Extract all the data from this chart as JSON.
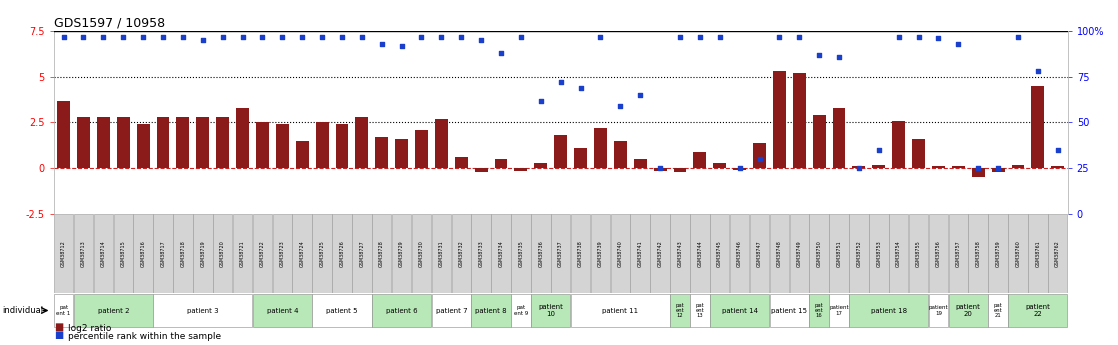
{
  "title": "GDS1597 / 10958",
  "samples": [
    "GSM38712",
    "GSM38713",
    "GSM38714",
    "GSM38715",
    "GSM38716",
    "GSM38717",
    "GSM38718",
    "GSM38719",
    "GSM38720",
    "GSM38721",
    "GSM38722",
    "GSM38723",
    "GSM38724",
    "GSM38725",
    "GSM38726",
    "GSM38727",
    "GSM38728",
    "GSM38729",
    "GSM38730",
    "GSM38731",
    "GSM38732",
    "GSM38733",
    "GSM38734",
    "GSM38735",
    "GSM38736",
    "GSM38737",
    "GSM38738",
    "GSM38739",
    "GSM38740",
    "GSM38741",
    "GSM38742",
    "GSM38743",
    "GSM38744",
    "GSM38745",
    "GSM38746",
    "GSM38747",
    "GSM38748",
    "GSM38749",
    "GSM38750",
    "GSM38751",
    "GSM38752",
    "GSM38753",
    "GSM38754",
    "GSM38755",
    "GSM38756",
    "GSM38757",
    "GSM38758",
    "GSM38759",
    "GSM38760",
    "GSM38761",
    "GSM38762"
  ],
  "log2_ratio": [
    3.7,
    2.8,
    2.8,
    2.8,
    2.4,
    2.8,
    2.8,
    2.8,
    2.8,
    3.3,
    2.5,
    2.4,
    1.5,
    2.5,
    2.4,
    2.8,
    1.7,
    1.6,
    2.1,
    2.7,
    0.6,
    -0.2,
    0.5,
    -0.15,
    0.3,
    1.8,
    1.1,
    2.2,
    1.5,
    0.5,
    -0.15,
    -0.2,
    0.9,
    0.3,
    -0.1,
    1.4,
    5.3,
    5.2,
    2.9,
    3.3,
    0.1,
    0.15,
    2.6,
    1.6,
    0.1,
    0.1,
    -0.5,
    -0.2,
    0.15,
    4.5,
    0.1
  ],
  "percentile": [
    97,
    97,
    97,
    97,
    97,
    97,
    97,
    95,
    97,
    97,
    97,
    97,
    97,
    97,
    97,
    97,
    93,
    92,
    97,
    97,
    97,
    95,
    88,
    97,
    62,
    72,
    69,
    97,
    59,
    65,
    25,
    97,
    97,
    97,
    25,
    30,
    97,
    97,
    87,
    86,
    25,
    35,
    97,
    97,
    96,
    93,
    25,
    25,
    97,
    78,
    35
  ],
  "patients": [
    {
      "label": "pat\nent 1",
      "start": 0,
      "end": 1,
      "alt": 0
    },
    {
      "label": "patient 2",
      "start": 1,
      "end": 5,
      "alt": 1
    },
    {
      "label": "patient 3",
      "start": 5,
      "end": 10,
      "alt": 0
    },
    {
      "label": "patient 4",
      "start": 10,
      "end": 13,
      "alt": 1
    },
    {
      "label": "patient 5",
      "start": 13,
      "end": 16,
      "alt": 0
    },
    {
      "label": "patient 6",
      "start": 16,
      "end": 19,
      "alt": 1
    },
    {
      "label": "patient 7",
      "start": 19,
      "end": 21,
      "alt": 0
    },
    {
      "label": "patient 8",
      "start": 21,
      "end": 23,
      "alt": 1
    },
    {
      "label": "pat\nent 9",
      "start": 23,
      "end": 24,
      "alt": 0
    },
    {
      "label": "patient\n10",
      "start": 24,
      "end": 26,
      "alt": 1
    },
    {
      "label": "patient 11",
      "start": 26,
      "end": 31,
      "alt": 0
    },
    {
      "label": "pat\nent\n12",
      "start": 31,
      "end": 32,
      "alt": 1
    },
    {
      "label": "pat\nent\n13",
      "start": 32,
      "end": 33,
      "alt": 0
    },
    {
      "label": "patient 14",
      "start": 33,
      "end": 36,
      "alt": 1
    },
    {
      "label": "patient 15",
      "start": 36,
      "end": 38,
      "alt": 0
    },
    {
      "label": "pat\nent\n16",
      "start": 38,
      "end": 39,
      "alt": 1
    },
    {
      "label": "patient\n17",
      "start": 39,
      "end": 40,
      "alt": 0
    },
    {
      "label": "patient 18",
      "start": 40,
      "end": 44,
      "alt": 1
    },
    {
      "label": "patient\n19",
      "start": 44,
      "end": 45,
      "alt": 0
    },
    {
      "label": "patient\n20",
      "start": 45,
      "end": 47,
      "alt": 1
    },
    {
      "label": "pat\nent\n21",
      "start": 47,
      "end": 48,
      "alt": 0
    },
    {
      "label": "patient\n22",
      "start": 48,
      "end": 51,
      "alt": 1
    }
  ],
  "ylim_left": [
    -2.5,
    7.5
  ],
  "ylim_right": [
    0,
    100
  ],
  "yticks_left": [
    -2.5,
    0,
    2.5,
    5.0,
    7.5
  ],
  "ytick_left_labels": [
    "-2.5",
    "0",
    "2.5",
    "5",
    "7.5"
  ],
  "yticks_right": [
    0,
    25,
    50,
    75,
    100
  ],
  "ytick_labels_right": [
    "0",
    "25",
    "50",
    "75",
    "100%"
  ],
  "hlines": [
    2.5,
    5.0
  ],
  "bar_color": "#8B1A1A",
  "dot_color": "#1a3fcc",
  "zero_line_color": "#cc2222",
  "bg_color": "#ffffff",
  "sample_box_color": "#d4d4d4",
  "pat_color_0": "#ffffff",
  "pat_color_1": "#b8e8b8"
}
